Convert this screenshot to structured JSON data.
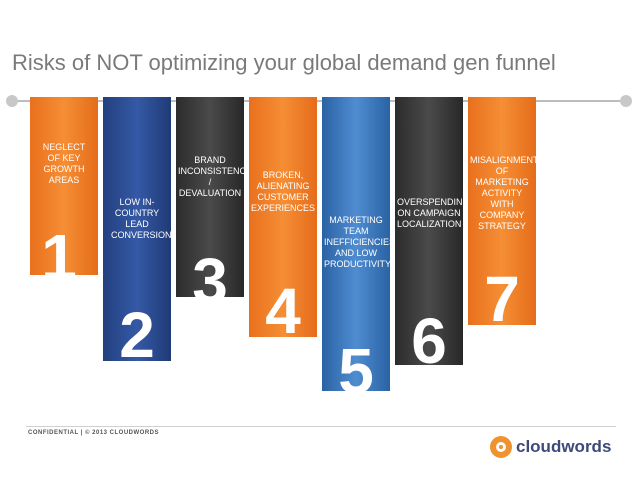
{
  "slide": {
    "title": "Risks of NOT optimizing your global demand gen funnel"
  },
  "banners": [
    {
      "number": "1",
      "text": "NEGLECT OF KEY GROWTH AREAS",
      "color": "#ef7b22"
    },
    {
      "number": "2",
      "text": "LOW IN-COUNTRY LEAD CONVERSION",
      "color": "#2c4d94"
    },
    {
      "number": "3",
      "text": "BRAND INCONSISTENCIES / DEVALUATION",
      "color": "#3a3a3a"
    },
    {
      "number": "4",
      "text": "BROKEN, ALIENATING CUSTOMER EXPERIENCES",
      "color": "#ef7b22"
    },
    {
      "number": "5",
      "text": "MARKETING TEAM INEFFICIENCIES AND LOW PRODUCTIVITY",
      "color": "#3a77bf"
    },
    {
      "number": "6",
      "text": "OVERSPENDING ON CAMPAIGN LOCALIZATION",
      "color": "#3a3a3a"
    },
    {
      "number": "7",
      "text": "MISALIGNMENT OF MARKETING ACTIVITY WITH COMPANY STRATEGY",
      "color": "#ef7b22"
    }
  ],
  "footer": {
    "confidential": "CONFIDENTIAL | © 2013 CLOUDWORDS",
    "brand_name": "cloudwords",
    "brand_icon": "cloudwords-logo-icon"
  }
}
